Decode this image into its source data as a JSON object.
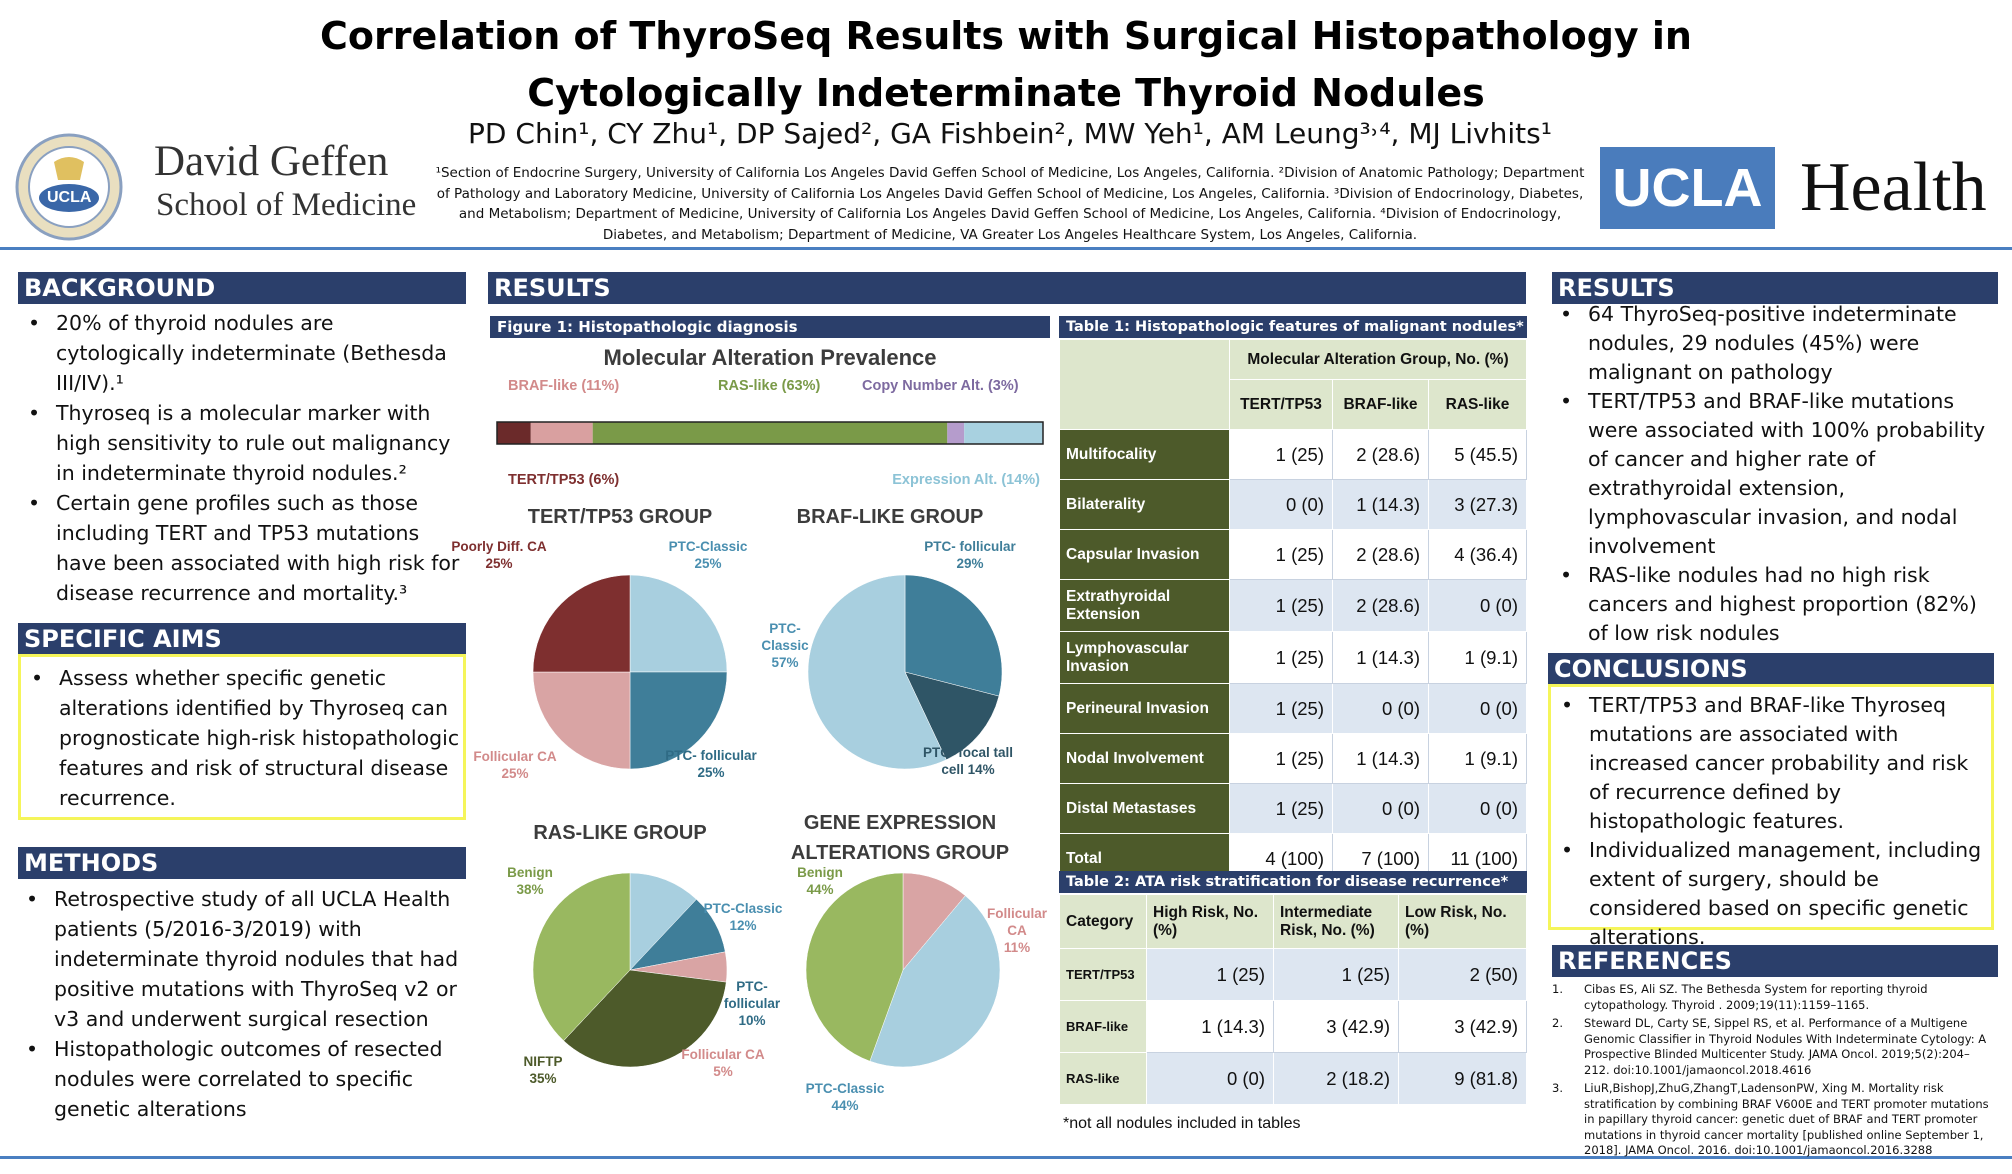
{
  "title_line1": "Correlation of ThyroSeq Results with Surgical Histopathology in",
  "title_line2": "Cytologically Indeterminate Thyroid Nodules",
  "authors": "PD Chin¹, CY Zhu¹, DP Sajed², GA Fishbein², MW Yeh¹, AM Leung³˒⁴, MJ Livhits¹",
  "affiliations": "¹Section of Endocrine Surgery, University of California Los Angeles David Geffen School of Medicine, Los Angeles, California. ²Division of Anatomic Pathology; Department of Pathology and Laboratory Medicine, University of California Los Angeles David Geffen School of Medicine, Los Angeles, California. ³Division of Endocrinology, Diabetes, and Metabolism; Department of Medicine, University of California Los Angeles David Geffen School of Medicine, Los Angeles, California. ⁴Division of Endocrinology, Diabetes, and Metabolism; Department of Medicine, VA Greater Los Angeles Healthcare System, Los Angeles, California.",
  "logo_left": {
    "line1": "David Geffen",
    "line2": "School of Medicine",
    "seal_text": "UCLA",
    "ring_text": "DAVID GEFFEN SCHOOL OF MEDICINE"
  },
  "logo_right": {
    "box": "UCLA",
    "word": "Health"
  },
  "colors": {
    "navy": "#2b3f6b",
    "olive": "#4d5a2a",
    "yellow": "#f5f55a",
    "rule": "#4a7fc1"
  },
  "background": {
    "header": "BACKGROUND",
    "bullets": [
      "20% of thyroid nodules are cytologically indeterminate (Bethesda III/IV).¹",
      "Thyroseq is a molecular marker with high sensitivity to rule out malignancy in indeterminate thyroid nodules.²",
      "Certain gene profiles such as those including TERT and TP53 mutations have been associated with high risk for disease recurrence and mortality.³"
    ]
  },
  "aims": {
    "header": "SPECIFIC AIMS",
    "bullets": [
      "Assess whether specific genetic alterations identified by Thyroseq can prognosticate high-risk histopathologic features and risk of structural disease recurrence."
    ]
  },
  "methods": {
    "header": "METHODS",
    "bullets": [
      "Retrospective study of all UCLA Health patients (5/2016-3/2019) with indeterminate thyroid nodules that had positive mutations with ThyroSeq v2 or v3 and underwent surgical resection",
      "Histopathologic outcomes of resected nodules were correlated to specific genetic alterations"
    ]
  },
  "results_mid": {
    "header": "RESULTS",
    "figure_title": "Figure 1: Histopathologic diagnosis"
  },
  "chart_data": [
    {
      "type": "bar",
      "title": "Molecular Alteration Prevalence",
      "stacked": true,
      "categories": [
        "TERT/TP53",
        "BRAF-like",
        "RAS-like",
        "Copy Number Alt.",
        "Expression Alt."
      ],
      "labels": [
        "TERT/TP53 (6%)",
        "BRAF-like (11%)",
        "RAS-like (63%)",
        "Copy Number Alt. (3%)",
        "Expression Alt. (14%)"
      ],
      "values": [
        6,
        11,
        63,
        3,
        14
      ],
      "colors": [
        "#6b2a2a",
        "#d9a0a0",
        "#7a9a48",
        "#b59ccc",
        "#a8d1e0"
      ]
    },
    {
      "type": "pie",
      "title": "TERT/TP53 GROUP",
      "labels": [
        "PTC-Classic\n25%",
        "PTC- follicular\n25%",
        "Follicular CA\n25%",
        "Poorly Diff. CA\n25%"
      ],
      "values": [
        25,
        25,
        25,
        25
      ],
      "colors": [
        "#a8cfdf",
        "#3f7e99",
        "#d9a4a4",
        "#7e2f2f"
      ]
    },
    {
      "type": "pie",
      "title": "BRAF-LIKE GROUP",
      "labels": [
        "PTC- follicular\n29%",
        "PTC- focal tall\ncell 14%",
        "PTC-\nClassic\n57%"
      ],
      "values": [
        29,
        14,
        57
      ],
      "colors": [
        "#3f7e99",
        "#2f5566",
        "#a8cfdf"
      ]
    },
    {
      "type": "pie",
      "title": "RAS-LIKE GROUP",
      "labels": [
        "PTC-Classic\n12%",
        "PTC-\nfollicular\n10%",
        "Follicular CA\n5%",
        "NIFTP\n35%",
        "Benign\n38%"
      ],
      "values": [
        12,
        10,
        5,
        35,
        38
      ],
      "colors": [
        "#a8cfdf",
        "#3f7e99",
        "#d9a4a4",
        "#4d5a2a",
        "#99b860"
      ]
    },
    {
      "type": "pie",
      "title": "GENE EXPRESSION\nALTERATIONS GROUP",
      "labels": [
        "Follicular\nCA\n11%",
        "PTC-Classic\n44%",
        "Benign\n44%"
      ],
      "values": [
        11,
        44,
        44
      ],
      "colors": [
        "#d9a4a4",
        "#a8cfdf",
        "#99b860"
      ]
    }
  ],
  "table1": {
    "title": "Table 1: Histopathologic features of malignant nodules*",
    "group_header": "Molecular Alteration Group, No. (%)",
    "cols": [
      "TERT/TP53",
      "BRAF-like",
      "RAS-like"
    ],
    "rows": [
      {
        "label": "Multifocality",
        "v": [
          "1 (25)",
          "2 (28.6)",
          "5 (45.5)"
        ]
      },
      {
        "label": "Bilaterality",
        "v": [
          "0 (0)",
          "1 (14.3)",
          "3 (27.3)"
        ]
      },
      {
        "label": "Capsular Invasion",
        "v": [
          "1 (25)",
          "2 (28.6)",
          "4 (36.4)"
        ]
      },
      {
        "label": "Extrathyroidal Extension",
        "v": [
          "1 (25)",
          "2 (28.6)",
          "0 (0)"
        ]
      },
      {
        "label": "Lymphovascular Invasion",
        "v": [
          "1 (25)",
          "1 (14.3)",
          "1 (9.1)"
        ]
      },
      {
        "label": "Perineural Invasion",
        "v": [
          "1 (25)",
          "0 (0)",
          "0 (0)"
        ]
      },
      {
        "label": "Nodal Involvement",
        "v": [
          "1 (25)",
          "1 (14.3)",
          "1 (9.1)"
        ]
      },
      {
        "label": "Distal Metastases",
        "v": [
          "1 (25)",
          "0 (0)",
          "0 (0)"
        ]
      },
      {
        "label": "Total",
        "v": [
          "4 (100)",
          "7 (100)",
          "11 (100)"
        ]
      }
    ]
  },
  "table2": {
    "title": "Table 2: ATA risk stratification for disease recurrence*",
    "cols": [
      "Category",
      "High Risk, No. (%)",
      "Intermediate Risk, No. (%)",
      "Low Risk, No. (%)"
    ],
    "rows": [
      {
        "label": "TERT/TP53",
        "v": [
          "1 (25)",
          "1 (25)",
          "2 (50)"
        ]
      },
      {
        "label": "BRAF-like",
        "v": [
          "1 (14.3)",
          "3 (42.9)",
          "3 (42.9)"
        ]
      },
      {
        "label": "RAS-like",
        "v": [
          "0 (0)",
          "2 (18.2)",
          "9 (81.8)"
        ]
      }
    ],
    "footnote": "*not all nodules included in tables"
  },
  "results_right": {
    "header": "RESULTS",
    "bullets": [
      "64 ThyroSeq-positive indeterminate nodules, 29 nodules (45%) were malignant on pathology",
      "TERT/TP53 and BRAF-like mutations were associated with 100% probability of cancer and higher rate of extrathyroidal extension, lymphovascular invasion, and nodal involvement",
      "RAS-like nodules had no high risk cancers and highest proportion (82%) of low risk nodules"
    ]
  },
  "conclusions": {
    "header": "CONCLUSIONS",
    "bullets": [
      "TERT/TP53 and BRAF-like Thyroseq mutations are associated with increased cancer probability and risk of recurrence defined by histopathologic features.",
      "Individualized management, including extent of surgery, should be considered based on specific genetic alterations."
    ]
  },
  "references": {
    "header": "REFERENCES",
    "items": [
      {
        "n": "1.",
        "text": "Cibas ES, Ali SZ. The Bethesda System for reporting thyroid cytopathology. Thyroid . 2009;19(11):1159–1165."
      },
      {
        "n": "2.",
        "text": "Steward DL, Carty SE, Sippel RS, et al. Performance of a Multigene Genomic Classifier in Thyroid Nodules With Indeterminate Cytology: A Prospective Blinded Multicenter Study. JAMA Oncol. 2019;5(2):204–212. doi:10.1001/jamaoncol.2018.4616"
      },
      {
        "n": "3.",
        "text": "LiuR,BishopJ,ZhuG,ZhangT,LadensonPW, Xing M. Mortality risk stratification by combining BRAF V600E and TERT promoter mutations in papillary thyroid cancer: genetic duet of BRAF and TERT promoter mutations in thyroid cancer mortality [published online September 1, 2018]. JAMA Oncol. 2016. doi:10.1001/jamaoncol.2016.3288"
      }
    ]
  }
}
